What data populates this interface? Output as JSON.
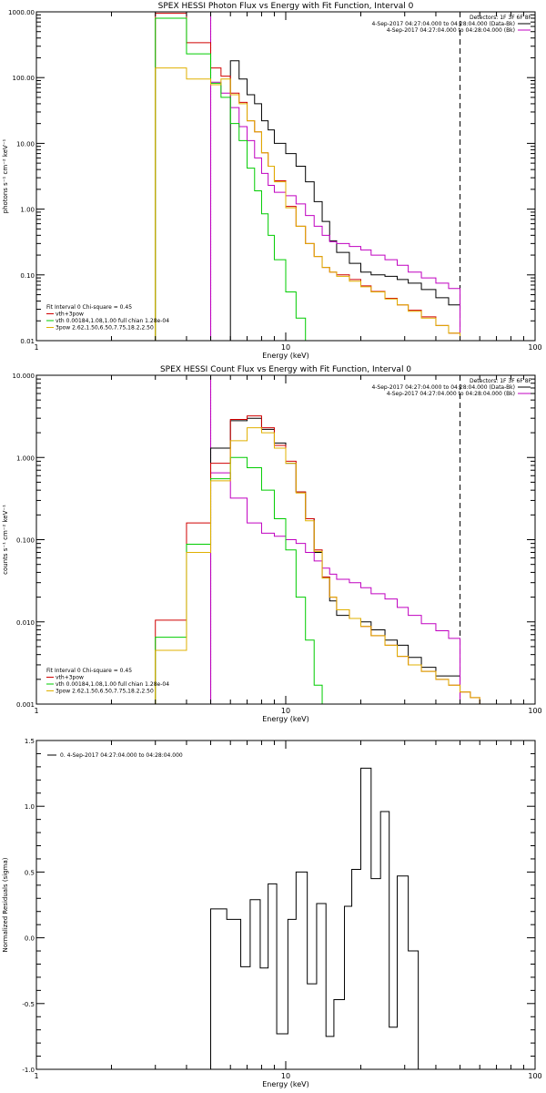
{
  "chart_data": [
    {
      "type": "line",
      "title": "SPEX HESSI Photon Flux vs Energy with Fit Function, Interval 0",
      "xlabel": "Energy (keV)",
      "ylabel": "photons s⁻¹ cm⁻² keV⁻¹",
      "xscale": "log",
      "yscale": "log",
      "xlim": [
        1,
        100
      ],
      "ylim": [
        0.01,
        1000
      ],
      "xticks": [
        {
          "v": 1,
          "label": "1"
        },
        {
          "v": 10,
          "label": "10"
        },
        {
          "v": 100,
          "label": "100"
        }
      ],
      "yticks": [
        {
          "v": 0.01,
          "label": "0.01"
        },
        {
          "v": 0.1,
          "label": "0.10"
        },
        {
          "v": 1,
          "label": "1.00"
        },
        {
          "v": 10,
          "label": "10.00"
        },
        {
          "v": 100,
          "label": "100.00"
        },
        {
          "v": 1000,
          "label": "1000.00"
        }
      ],
      "vlines": [
        {
          "x": 5.0,
          "style": "dotted",
          "color": "#000000"
        },
        {
          "x": 5.0,
          "style": "solid",
          "color": "#c000c0"
        },
        {
          "x": 50,
          "style": "dashed",
          "color": "#000000"
        }
      ],
      "header": [
        "Detectors: 1F 3F 6F 8F",
        "4-Sep-2017 04:27:04.000 to 04:28:04.000 (Data-Bk)",
        "4-Sep-2017 04:27:04.000 to 04:28:04.000 (Bk)"
      ],
      "legend": [
        "Fit Interval 0   Chi-square = 0.45",
        "vth+3pow",
        "vth 0.00184,1.08,1.00  full chian 1.28e-04",
        "3pow 2.62,1.50,6.50,7.75,18.2,2.50"
      ],
      "edges": [
        3,
        4,
        5,
        5.5,
        6,
        6.5,
        7,
        7.5,
        8,
        8.5,
        9,
        10,
        11,
        12,
        13,
        14,
        15,
        16,
        18,
        20,
        22,
        25,
        28,
        31,
        35,
        40,
        45,
        50
      ],
      "series": [
        {
          "name": "4-Sep-2017 04:27:04.000 to 04:28:04.000 (Data-Bk)",
          "color": "#000000",
          "start": 4,
          "values": [
            180,
            95,
            55,
            40,
            22,
            16,
            10,
            7,
            4.5,
            2.6,
            1.3,
            0.65,
            0.33,
            0.22,
            0.15,
            0.11,
            0.1,
            0.095,
            0.085,
            0.075,
            0.06,
            0.045,
            0.035,
            0.028
          ]
        },
        {
          "name": "4-Sep-2017 04:27:04.000 to 04:28:04.000 (Bk)",
          "color": "#c000c0",
          "start": 2,
          "values": [
            85,
            58,
            35,
            18,
            11,
            6,
            3.5,
            2.3,
            1.8,
            1.6,
            1.2,
            0.8,
            0.55,
            0.4,
            0.32,
            0.3,
            0.27,
            0.24,
            0.2,
            0.17,
            0.14,
            0.11,
            0.09,
            0.075,
            0.062
          ]
        },
        {
          "name": "vth+3pow",
          "color": "#d00000",
          "start": 0,
          "values": [
            950,
            340,
            140,
            105,
            58,
            42,
            22,
            15,
            7.2,
            4.5,
            2.7,
            1.1,
            0.55,
            0.3,
            0.19,
            0.13,
            0.11,
            0.1,
            0.085,
            0.068,
            0.056,
            0.044,
            0.035,
            0.029,
            0.023,
            0.017,
            0.013
          ]
        },
        {
          "name": "vth 0.00184,1.08,1.00  full chian 1.28e-04",
          "color": "#00cc00",
          "start": 0,
          "values": [
            800,
            230,
            82,
            50,
            20,
            11,
            4.2,
            1.9,
            0.85,
            0.4,
            0.17,
            0.055,
            0.022
          ]
        },
        {
          "name": "3pow 2.62,1.50,6.50,7.75,18.2,2.50",
          "color": "#e0b000",
          "start": 0,
          "values": [
            140,
            95,
            78,
            95,
            55,
            40,
            22,
            15,
            7.2,
            4.5,
            2.6,
            1.05,
            0.55,
            0.3,
            0.19,
            0.13,
            0.11,
            0.095,
            0.08,
            0.066,
            0.055,
            0.043,
            0.035,
            0.028,
            0.022,
            0.017,
            0.013
          ]
        }
      ]
    },
    {
      "type": "line",
      "title": "SPEX HESSI Count Flux vs Energy with Fit Function, Interval 0",
      "xlabel": "Energy (keV)",
      "ylabel": "counts s⁻¹ cm⁻² keV⁻¹",
      "xscale": "log",
      "yscale": "log",
      "xlim": [
        1,
        100
      ],
      "ylim": [
        0.001,
        10
      ],
      "xticks": [
        {
          "v": 1,
          "label": "1"
        },
        {
          "v": 10,
          "label": "10"
        },
        {
          "v": 100,
          "label": "100"
        }
      ],
      "yticks": [
        {
          "v": 0.001,
          "label": "0.001"
        },
        {
          "v": 0.01,
          "label": "0.010"
        },
        {
          "v": 0.1,
          "label": "0.100"
        },
        {
          "v": 1,
          "label": "1.000"
        },
        {
          "v": 10,
          "label": "10.000"
        }
      ],
      "vlines": [
        {
          "x": 5.0,
          "style": "dotted",
          "color": "#000000"
        },
        {
          "x": 5.0,
          "style": "solid",
          "color": "#c000c0"
        },
        {
          "x": 50,
          "style": "dashed",
          "color": "#000000"
        }
      ],
      "header": [
        "Detectors: 1F 3F 6F 8F",
        "4-Sep-2017 04:27:04.000 to 04:28:04.000 (Data-Bk)",
        "4-Sep-2017 04:27:04.000 to 04:28:04.000 (Bk)"
      ],
      "legend": [
        "Fit Interval 0   Chi-square = 0.45",
        "vth+3pow",
        "vth 0.00184,1.08,1.00  full chian 1.28e-04",
        "3pow 2.62,1.50,6.50,7.75,18.2,2.50"
      ],
      "edges": [
        3,
        4,
        5,
        6,
        7,
        8,
        9,
        10,
        11,
        12,
        13,
        14,
        15,
        16,
        18,
        20,
        22,
        25,
        28,
        31,
        35,
        40,
        45,
        50,
        55,
        60,
        65,
        70,
        75
      ],
      "series": [
        {
          "name": "4-Sep-2017 04:27:04.000 to 04:28:04.000 (Data-Bk)",
          "color": "#000000",
          "start": 2,
          "values": [
            1.3,
            2.8,
            3.0,
            2.2,
            1.5,
            0.85,
            0.38,
            0.18,
            0.07,
            0.035,
            0.018,
            0.012,
            0.011,
            0.01,
            0.008,
            0.006,
            0.0052,
            0.0037,
            0.0028,
            0.0022,
            0.0022
          ]
        },
        {
          "name": "4-Sep-2017 04:27:04.000 to 04:28:04.000 (Bk)",
          "color": "#c000c0",
          "start": 2,
          "values": [
            0.65,
            0.32,
            0.16,
            0.12,
            0.11,
            0.1,
            0.09,
            0.07,
            0.055,
            0.045,
            0.038,
            0.033,
            0.03,
            0.026,
            0.022,
            0.019,
            0.015,
            0.012,
            0.0095,
            0.0078,
            0.0063
          ]
        },
        {
          "name": "vth+3pow",
          "color": "#d00000",
          "start": 0,
          "values": [
            0.0105,
            0.16,
            0.85,
            2.9,
            3.2,
            2.3,
            1.4,
            0.9,
            0.38,
            0.18,
            0.075,
            0.035,
            0.02,
            0.014,
            0.011,
            0.0088,
            0.0068,
            0.0052,
            0.0038,
            0.003,
            0.0025,
            0.002,
            0.0017,
            0.0014,
            0.0012,
            0.001
          ]
        },
        {
          "name": "vth 0.00184,1.08,1.00  full chian 1.28e-04",
          "color": "#00cc00",
          "start": 0,
          "values": [
            0.0065,
            0.088,
            0.55,
            1.0,
            0.75,
            0.4,
            0.18,
            0.075,
            0.02,
            0.006,
            0.0017
          ]
        },
        {
          "name": "3pow 2.62,1.50,6.50,7.75,18.2,2.50",
          "color": "#e0b000",
          "start": 0,
          "values": [
            0.0045,
            0.07,
            0.52,
            1.6,
            2.3,
            2.0,
            1.3,
            0.85,
            0.37,
            0.17,
            0.072,
            0.034,
            0.02,
            0.014,
            0.011,
            0.0088,
            0.0068,
            0.0052,
            0.0038,
            0.003,
            0.0025,
            0.002,
            0.0017,
            0.0014,
            0.0012,
            0.001
          ]
        }
      ]
    },
    {
      "type": "line",
      "title": "",
      "xlabel": "Energy (keV)",
      "ylabel": "Normalized Residuals (sigma)",
      "xscale": "log",
      "yscale": "linear",
      "xlim": [
        1,
        100
      ],
      "ylim": [
        -1.0,
        1.5
      ],
      "xticks": [
        {
          "v": 1,
          "label": "1"
        },
        {
          "v": 10,
          "label": "10"
        },
        {
          "v": 100,
          "label": "100"
        }
      ],
      "yticks": [
        {
          "v": -1.0,
          "label": "-1.0"
        },
        {
          "v": -0.5,
          "label": "-0.5"
        },
        {
          "v": 0.0,
          "label": "0.0"
        },
        {
          "v": 0.5,
          "label": "0.5"
        },
        {
          "v": 1.0,
          "label": "1.0"
        },
        {
          "v": 1.5,
          "label": "1.5"
        }
      ],
      "legend": [
        "0.  4-Sep-2017 04:27:04.000 to 04:28:04.000"
      ],
      "edges": [
        5.0,
        5.8,
        6.6,
        7.2,
        7.9,
        8.5,
        9.2,
        10.2,
        11.0,
        12.2,
        13.3,
        14.5,
        15.6,
        17.2,
        18.4,
        20.0,
        22.0,
        24.0,
        26.0,
        28.0,
        31.0,
        34.0,
        37.5,
        42.0,
        46.0,
        50.0
      ],
      "series": [
        {
          "name": "0.  4-Sep-2017 04:27:04.000 to 04:28:04.000",
          "color": "#000000",
          "start": 0,
          "values": [
            0.22,
            0.14,
            -0.22,
            0.29,
            -0.23,
            0.41,
            -0.73,
            0.14,
            0.5,
            -0.35,
            0.26,
            -0.75,
            -0.47,
            0.24,
            0.52,
            1.29,
            0.45,
            0.96,
            -0.68,
            0.47,
            -0.1
          ]
        }
      ]
    }
  ]
}
